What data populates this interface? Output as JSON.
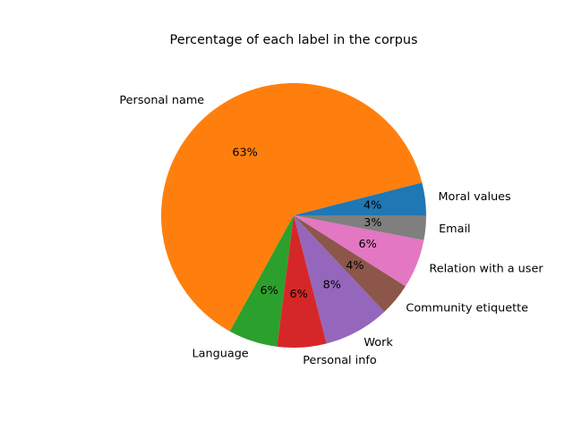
{
  "chart_data": {
    "type": "pie",
    "title": "Percentage of each label in the corpus",
    "slices": [
      {
        "label": "Moral values",
        "value": 4,
        "pct_label": "4%",
        "color": "#1f77b4"
      },
      {
        "label": "Personal name",
        "value": 63,
        "pct_label": "63%",
        "color": "#ff7f0e"
      },
      {
        "label": "Language",
        "value": 6,
        "pct_label": "6%",
        "color": "#2ca02c"
      },
      {
        "label": "Personal info",
        "value": 6,
        "pct_label": "6%",
        "color": "#d62728"
      },
      {
        "label": "Work",
        "value": 8,
        "pct_label": "8%",
        "color": "#9467bd"
      },
      {
        "label": "Community etiquette",
        "value": 4,
        "pct_label": "4%",
        "color": "#8c564b"
      },
      {
        "label": "Relation with a user",
        "value": 6,
        "pct_label": "6%",
        "color": "#e377c2"
      },
      {
        "label": "Email",
        "value": 3,
        "pct_label": "3%",
        "color": "#7f7f7f"
      }
    ]
  }
}
